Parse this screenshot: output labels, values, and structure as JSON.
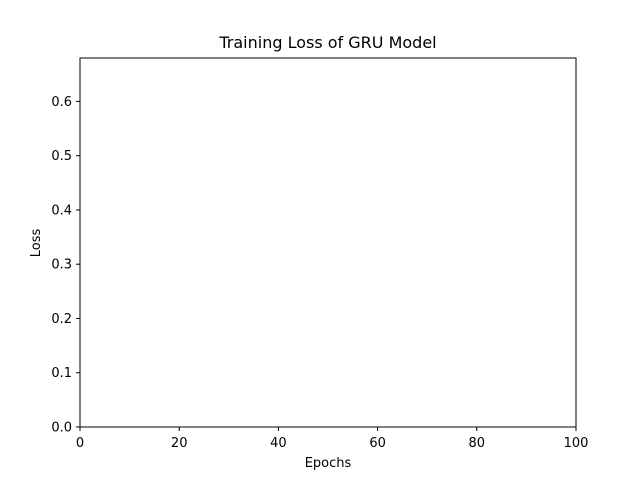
{
  "chart_data": {
    "type": "line",
    "title": "Training Loss of GRU Model",
    "xlabel": "Epochs",
    "ylabel": "Loss",
    "xlim": [
      0,
      100
    ],
    "ylim": [
      0,
      0.68
    ],
    "xticks": [
      0,
      20,
      40,
      60,
      80,
      100
    ],
    "yticks": [
      0.0,
      0.1,
      0.2,
      0.3,
      0.4,
      0.5,
      0.6
    ],
    "xtick_labels": [
      "0",
      "20",
      "40",
      "60",
      "80",
      "100"
    ],
    "ytick_labels": [
      "0.0",
      "0.1",
      "0.2",
      "0.3",
      "0.4",
      "0.5",
      "0.6"
    ],
    "grid": false,
    "series": [
      {
        "x": [],
        "y": []
      }
    ],
    "colors": {
      "axes": "#000000",
      "background": "#ffffff"
    }
  }
}
